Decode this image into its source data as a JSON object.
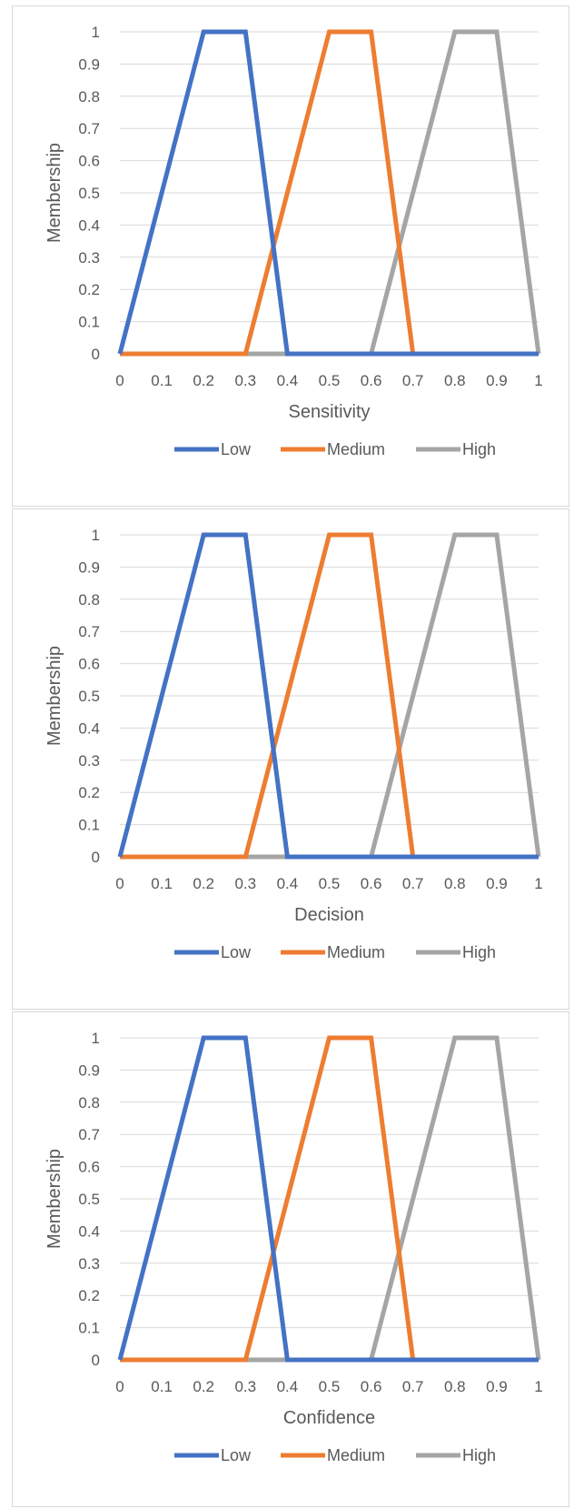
{
  "colors": {
    "low": "#4472c4",
    "medium": "#ed7d31",
    "high": "#a5a5a5",
    "grid": "#d9d9d9",
    "text": "#595959"
  },
  "chart_data": [
    {
      "type": "line",
      "xlabel": "Sensitivity",
      "ylabel": "Membership",
      "xlim": [
        0,
        1
      ],
      "ylim": [
        0,
        1
      ],
      "x_ticks": [
        "0",
        "0.1",
        "0.2",
        "0.3",
        "0.4",
        "0.5",
        "0.6",
        "0.7",
        "0.8",
        "0.9",
        "1"
      ],
      "y_ticks": [
        "0",
        "0.1",
        "0.2",
        "0.3",
        "0.4",
        "0.5",
        "0.6",
        "0.7",
        "0.8",
        "0.9",
        "1"
      ],
      "grid": "horizontal",
      "legend": "bottom",
      "series": [
        {
          "name": "Low",
          "x": [
            0,
            0.2,
            0.3,
            0.4,
            1
          ],
          "y": [
            0,
            1,
            1,
            0,
            0
          ]
        },
        {
          "name": "Medium",
          "x": [
            0,
            0.3,
            0.5,
            0.6,
            0.7,
            1
          ],
          "y": [
            0,
            0,
            1,
            1,
            0,
            0
          ]
        },
        {
          "name": "High",
          "x": [
            0,
            0.6,
            0.8,
            0.9,
            1
          ],
          "y": [
            0,
            0,
            1,
            1,
            0
          ]
        }
      ]
    },
    {
      "type": "line",
      "xlabel": "Decision",
      "ylabel": "Membership",
      "xlim": [
        0,
        1
      ],
      "ylim": [
        0,
        1
      ],
      "x_ticks": [
        "0",
        "0.1",
        "0.2",
        "0.3",
        "0.4",
        "0.5",
        "0.6",
        "0.7",
        "0.8",
        "0.9",
        "1"
      ],
      "y_ticks": [
        "0",
        "0.1",
        "0.2",
        "0.3",
        "0.4",
        "0.5",
        "0.6",
        "0.7",
        "0.8",
        "0.9",
        "1"
      ],
      "grid": "horizontal",
      "legend": "bottom",
      "series": [
        {
          "name": "Low",
          "x": [
            0,
            0.2,
            0.3,
            0.4,
            1
          ],
          "y": [
            0,
            1,
            1,
            0,
            0
          ]
        },
        {
          "name": "Medium",
          "x": [
            0,
            0.3,
            0.5,
            0.6,
            0.7,
            1
          ],
          "y": [
            0,
            0,
            1,
            1,
            0,
            0
          ]
        },
        {
          "name": "High",
          "x": [
            0,
            0.6,
            0.8,
            0.9,
            1
          ],
          "y": [
            0,
            0,
            1,
            1,
            0
          ]
        }
      ]
    },
    {
      "type": "line",
      "xlabel": "Confidence",
      "ylabel": "Membership",
      "xlim": [
        0,
        1
      ],
      "ylim": [
        0,
        1
      ],
      "x_ticks": [
        "0",
        "0.1",
        "0.2",
        "0.3",
        "0.4",
        "0.5",
        "0.6",
        "0.7",
        "0.8",
        "0.9",
        "1"
      ],
      "y_ticks": [
        "0",
        "0.1",
        "0.2",
        "0.3",
        "0.4",
        "0.5",
        "0.6",
        "0.7",
        "0.8",
        "0.9",
        "1"
      ],
      "grid": "horizontal",
      "legend": "bottom",
      "series": [
        {
          "name": "Low",
          "x": [
            0,
            0.2,
            0.3,
            0.4,
            1
          ],
          "y": [
            0,
            1,
            1,
            0,
            0
          ]
        },
        {
          "name": "Medium",
          "x": [
            0,
            0.3,
            0.5,
            0.6,
            0.7,
            1
          ],
          "y": [
            0,
            0,
            1,
            1,
            0,
            0
          ]
        },
        {
          "name": "High",
          "x": [
            0,
            0.6,
            0.8,
            0.9,
            1
          ],
          "y": [
            0,
            0,
            1,
            1,
            0
          ]
        }
      ]
    }
  ]
}
